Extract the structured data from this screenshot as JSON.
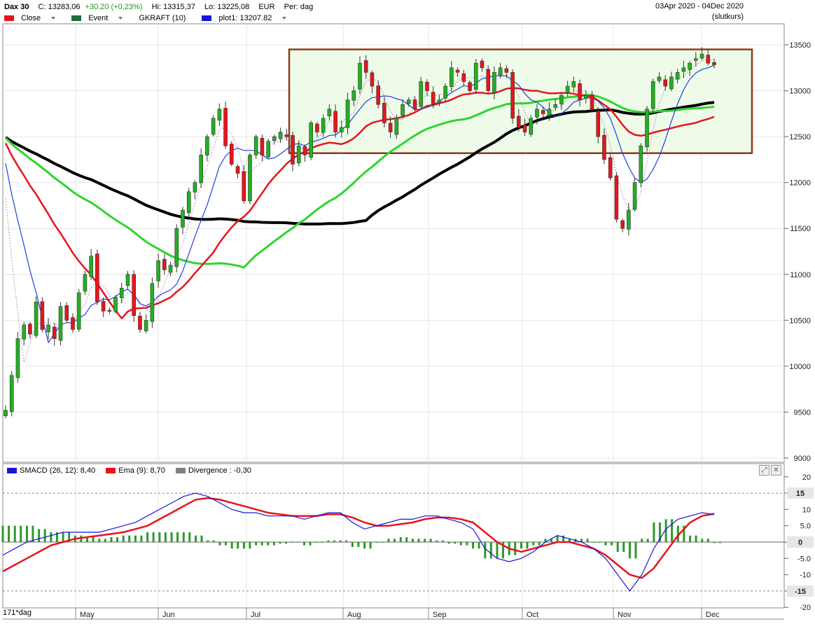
{
  "header": {
    "symbol": "Dax 30",
    "close": "C: 13283,06",
    "change": "+30,20 (+0,23%)",
    "high": "Hi: 13315,37",
    "low": "Lo: 13225,08",
    "currency": "EUR",
    "period": "Per: dag",
    "date_range": "03Apr 2020 - 04Dec 2020",
    "price_basis": "(slutkurs)"
  },
  "legend_main": [
    {
      "label": "Close",
      "color": "#e8141b",
      "dropdown": true
    },
    {
      "label": "Event",
      "color": "#1e6e3c",
      "dropdown": true
    },
    {
      "label": "GKRAFT (10)",
      "color": "",
      "dropdown": false
    },
    {
      "label": "plot1: 13207.82",
      "color": "#1515e0",
      "dropdown": true
    }
  ],
  "legend_macd": [
    {
      "label": "SMACD (26, 12): 8,40",
      "color": "#1515e0"
    },
    {
      "label": "Ema (9): 8,70",
      "color": "#e8141b"
    },
    {
      "label": "Divergence : -0,30",
      "color": "#808080"
    }
  ],
  "toolbar": {
    "zoom_icon": "zoom-icon",
    "close_icon": "close-icon"
  },
  "corner_label": "171*dag",
  "colors": {
    "ma_blue": "#2040e0",
    "ma_red": "#e8141b",
    "ma_green": "#2ed52e",
    "ma_black": "#000000",
    "candle_up": "#22b022",
    "candle_down": "#e8141b",
    "box_border": "#8b3a1a",
    "box_fill": "#eefbe9",
    "hist": "#2a9a2a"
  },
  "chart_data": [
    {
      "type": "candlestick",
      "title": "Dax 30",
      "ylim": [
        8950,
        13650
      ],
      "yticks": [
        9000,
        9500,
        10000,
        10500,
        11000,
        11500,
        12000,
        12500,
        13000,
        13500
      ],
      "x_labels": [
        "May",
        "Jun",
        "Jul",
        "Aug",
        "Sep",
        "Oct",
        "Nov",
        "Dec"
      ],
      "grid": true,
      "annotations": [
        {
          "type": "rectangle",
          "from": "mid-Jul",
          "to": "Dec",
          "ylow": 12320,
          "yhigh": 13450
        }
      ],
      "approx_closes": [
        9520,
        9900,
        10300,
        10450,
        10350,
        10700,
        10400,
        10450,
        10300,
        10650,
        10500,
        10400,
        10800,
        11000,
        11200,
        10700,
        10600,
        10600,
        10750,
        10850,
        11000,
        10550,
        10400,
        10500,
        10900,
        11150,
        11050,
        11100,
        11500,
        11700,
        11900,
        12000,
        12300,
        12500,
        12700,
        12800,
        12400,
        12200,
        12100,
        11800,
        12300,
        12500,
        12300,
        12450,
        12500,
        12550,
        12500,
        12200,
        12400,
        12300,
        12650,
        12550,
        12700,
        12800,
        12550,
        12600,
        12900,
        13000,
        13300,
        13200,
        13050,
        12850,
        12650,
        12550,
        12700,
        12850,
        12900,
        12800,
        13100,
        13000,
        12850,
        12900,
        13050,
        13250,
        13200,
        13100,
        13000,
        13300,
        13250,
        13000,
        13200,
        13250,
        13200,
        12700,
        12600,
        12550,
        12700,
        12800,
        12750,
        12800,
        12850,
        12950,
        13050,
        13100,
        12900,
        12950,
        12800,
        12500,
        12250,
        12050,
        11600,
        11500,
        11700,
        12000,
        12400,
        12800,
        13100,
        13150,
        13050,
        13150,
        13200,
        13250,
        13300,
        13350,
        13400,
        13300,
        13283
      ],
      "series": [
        {
          "name": "plot1",
          "last": 13207.82
        }
      ]
    },
    {
      "type": "line",
      "title": "SMACD (26, 12)",
      "ylim": [
        -20,
        20
      ],
      "yticks": [
        -20,
        -15,
        -10,
        -5,
        0,
        5,
        10,
        15,
        20
      ],
      "highlight_levels": [
        15,
        0,
        -15
      ],
      "series": [
        {
          "name": "SMACD (26, 12)",
          "last": 8.4
        },
        {
          "name": "Ema (9)",
          "last": 8.7
        },
        {
          "name": "Divergence",
          "last": -0.3
        }
      ],
      "approx_macd": [
        -4,
        -2,
        0,
        1,
        2,
        3,
        3,
        3,
        3,
        4,
        5,
        6,
        8,
        10,
        12,
        14,
        15,
        14,
        12,
        10,
        9,
        9,
        8,
        8,
        8,
        7,
        8,
        9,
        9,
        6,
        4,
        5,
        6,
        7,
        7,
        8,
        8,
        7,
        6,
        4,
        -2,
        -5,
        -6,
        -5,
        -3,
        0,
        2,
        1,
        0,
        -2,
        -5,
        -10,
        -15,
        -10,
        -2,
        4,
        7,
        8,
        9,
        8.4
      ],
      "approx_ema": [
        -9,
        -7,
        -5,
        -3,
        -1,
        0,
        1,
        1.5,
        2,
        2.5,
        3,
        4,
        5,
        7,
        9,
        11,
        13,
        13.5,
        13,
        12,
        11,
        10,
        9,
        8.5,
        8,
        8,
        8,
        8.5,
        8.5,
        7.5,
        6,
        5,
        5,
        5.5,
        6,
        7,
        7.5,
        7.5,
        7,
        6,
        3,
        0,
        -2,
        -3,
        -2,
        -1,
        0,
        0,
        -1,
        -2,
        -4,
        -7,
        -10,
        -11,
        -8,
        -3,
        2,
        6,
        8,
        8.7
      ]
    }
  ]
}
